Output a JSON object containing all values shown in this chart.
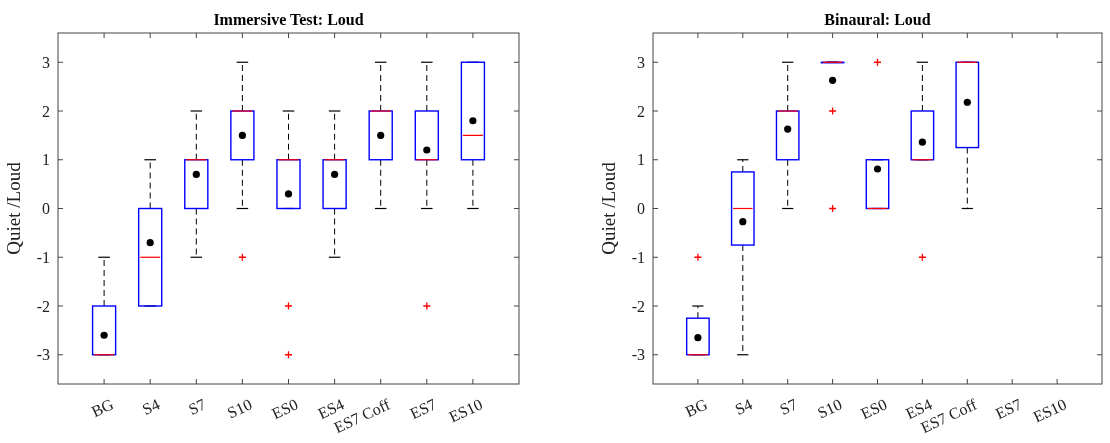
{
  "chart_data": [
    {
      "type": "box",
      "title": "Immersive Test: Loud",
      "ylabel": "Quiet /Loud",
      "categories": [
        "BG",
        "S4",
        "S7",
        "S10",
        "ES0",
        "ES4",
        "ES7 Coff",
        "ES7",
        "ES10"
      ],
      "ylim": [
        -3.6,
        3.6
      ],
      "yticks": [
        -3,
        -2,
        -1,
        0,
        1,
        2,
        3
      ],
      "grid": false,
      "series": [
        {
          "color": "#0000ff",
          "boxes": [
            {
              "low": -3,
              "q1": -3,
              "median": -3,
              "q3": -2,
              "high": -1,
              "mean": -2.6
            },
            {
              "low": -2,
              "q1": -2,
              "median": -1,
              "q3": 0,
              "high": 1,
              "mean": -0.7
            },
            {
              "low": -1,
              "q1": 0,
              "median": 1,
              "q3": 1,
              "high": 2,
              "mean": 0.7
            },
            {
              "low": 0,
              "q1": 1,
              "median": 2,
              "q3": 2,
              "high": 3,
              "mean": 1.5,
              "outliers": [
                -1
              ]
            },
            {
              "low": 0,
              "q1": 0,
              "median": 1,
              "q3": 1,
              "high": 2,
              "mean": 0.3,
              "outliers": [
                -2,
                -3
              ]
            },
            {
              "low": -1,
              "q1": 0,
              "median": 1,
              "q3": 1,
              "high": 2,
              "mean": 0.7
            },
            {
              "low": 0,
              "q1": 1,
              "median": 2,
              "q3": 2,
              "high": 3,
              "mean": 1.5
            },
            {
              "low": 0,
              "q1": 1,
              "median": 1,
              "q3": 2,
              "high": 3,
              "mean": 1.2,
              "outliers": [
                -2
              ]
            },
            {
              "low": 0,
              "q1": 1,
              "median": 1.5,
              "q3": 3,
              "high": 3,
              "mean": 1.8
            }
          ]
        }
      ]
    },
    {
      "type": "box",
      "title": "Binaural: Loud",
      "ylabel": "Quiet /Loud",
      "categories": [
        "BG",
        "S4",
        "S7",
        "S10",
        "ES0",
        "ES4",
        "ES7 Coff",
        "ES7",
        "ES10"
      ],
      "ylim": [
        -3.6,
        3.6
      ],
      "yticks": [
        -3,
        -2,
        -1,
        0,
        1,
        2,
        3
      ],
      "grid": false,
      "series": [
        {
          "color": "#0000ff",
          "boxes": [
            {
              "low": -3,
              "q1": -3,
              "median": -3,
              "q3": -2.25,
              "high": -2,
              "mean": -2.65,
              "outliers": [
                -1
              ]
            },
            {
              "low": -3,
              "q1": -0.75,
              "median": 0,
              "q3": 0.75,
              "high": 1,
              "mean": -0.27
            },
            {
              "low": 0,
              "q1": 1,
              "median": 2,
              "q3": 2,
              "high": 3,
              "mean": 1.63
            },
            {
              "low": 3,
              "q1": 3,
              "median": 3,
              "q3": 3,
              "high": 3,
              "mean": 2.63,
              "outliers": [
                2,
                0
              ]
            },
            {
              "low": 0,
              "q1": 0,
              "median": 0,
              "q3": 1,
              "high": 1,
              "mean": 0.81,
              "outliers": [
                3
              ]
            },
            {
              "low": 1,
              "q1": 1,
              "median": 1,
              "q3": 2,
              "high": 3,
              "mean": 1.36,
              "outliers": [
                -1
              ]
            },
            {
              "low": 0,
              "q1": 1.25,
              "median": 3,
              "q3": 3,
              "high": 3,
              "mean": 2.18
            },
            null,
            null
          ]
        }
      ]
    }
  ]
}
